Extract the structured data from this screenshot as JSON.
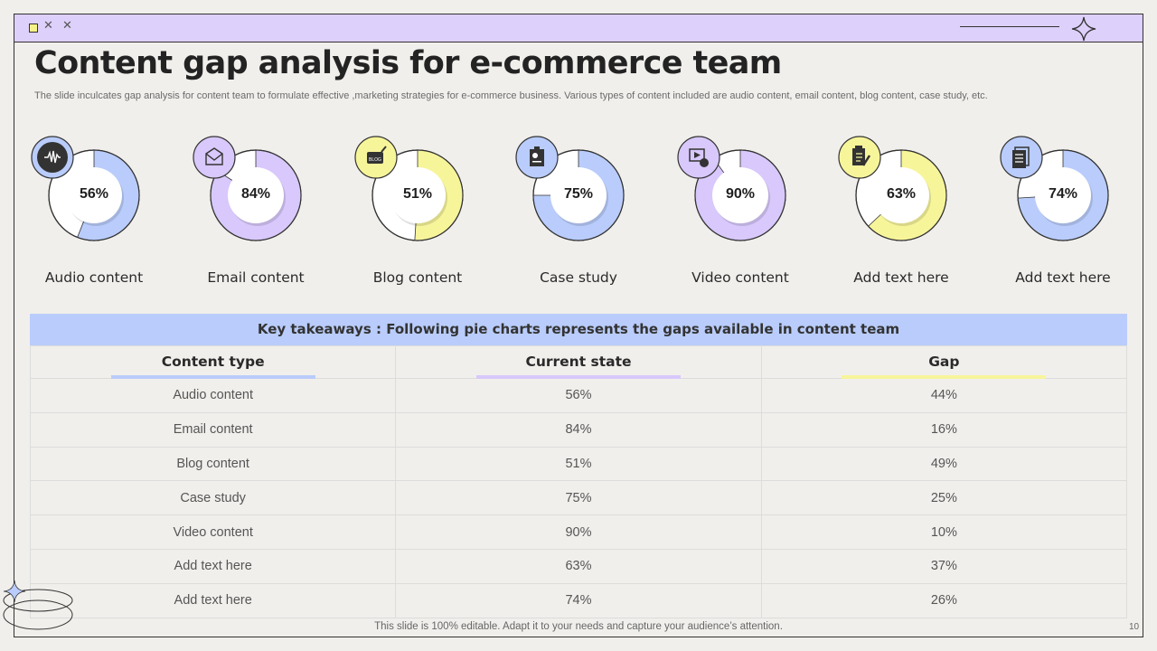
{
  "window": {
    "controls": [
      "square",
      "x",
      "x"
    ]
  },
  "slide": {
    "title": "Content gap analysis for e-commerce team",
    "subtitle": "The slide inculcates gap analysis for content team to formulate effective ,marketing strategies for e-commerce business. Various types of content included are audio content, email content, blog content, case study, etc.",
    "footer": "This slide is 100% editable. Adapt it to your needs and capture your audience’s attention.",
    "page_number": "10"
  },
  "colors": {
    "blue": "#b9ccfb",
    "purple": "#d8c8fb",
    "yellow": "#f7f59a",
    "titlebar": "#ddd0fb"
  },
  "donuts": [
    {
      "label": "Audio content",
      "value": 56,
      "pct": "56%",
      "color": "#b9ccfb",
      "icon": "audio-wave-icon"
    },
    {
      "label": "Email content",
      "value": 84,
      "pct": "84%",
      "color": "#d8c8fb",
      "icon": "email-icon"
    },
    {
      "label": "Blog content",
      "value": 51,
      "pct": "51%",
      "color": "#f7f59a",
      "icon": "blog-icon"
    },
    {
      "label": "Case study",
      "value": 75,
      "pct": "75%",
      "color": "#b9ccfb",
      "icon": "case-study-icon"
    },
    {
      "label": "Video content",
      "value": 90,
      "pct": "90%",
      "color": "#d8c8fb",
      "icon": "video-icon"
    },
    {
      "label": "Add text here",
      "value": 63,
      "pct": "63%",
      "color": "#f7f59a",
      "icon": "document-pen-icon"
    },
    {
      "label": "Add text here",
      "value": 74,
      "pct": "74%",
      "color": "#b9ccfb",
      "icon": "documents-icon"
    }
  ],
  "table": {
    "banner": "Key takeaways : Following pie charts represents the gaps available in content team",
    "headers": [
      "Content type",
      "Current state",
      "Gap"
    ],
    "rows": [
      [
        "Audio content",
        "56%",
        "44%"
      ],
      [
        "Email content",
        "84%",
        "16%"
      ],
      [
        "Blog content",
        "51%",
        "49%"
      ],
      [
        "Case study",
        "75%",
        "25%"
      ],
      [
        "Video content",
        "90%",
        "10%"
      ],
      [
        "Add text here",
        "63%",
        "37%"
      ],
      [
        "Add text here",
        "74%",
        "26%"
      ]
    ]
  }
}
